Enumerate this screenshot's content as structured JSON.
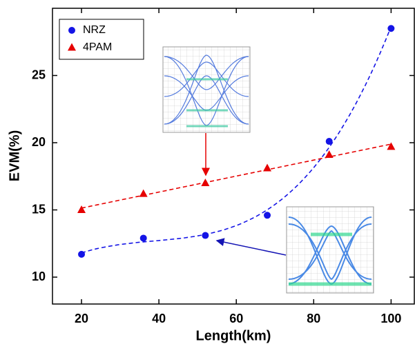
{
  "chart_data": {
    "type": "scatter",
    "x_label": "Length(km)",
    "y_label": "EVM(%)",
    "x": [
      20,
      36,
      52,
      68,
      84,
      100
    ],
    "series": [
      {
        "name": "NRZ",
        "color": "#1414e6",
        "marker": "circle",
        "values": [
          11.7,
          12.9,
          13.1,
          14.6,
          20.1,
          28.5
        ]
      },
      {
        "name": "4PAM",
        "color": "#e60000",
        "marker": "triangle",
        "values": [
          15.0,
          16.2,
          17.0,
          18.1,
          19.1,
          19.7
        ]
      }
    ],
    "xlim": [
      12.5,
      106
    ],
    "ylim": [
      8,
      30
    ],
    "xticks": [
      20,
      40,
      60,
      80,
      100
    ],
    "yticks": [
      10,
      15,
      20,
      25
    ],
    "legend": "upper left"
  }
}
